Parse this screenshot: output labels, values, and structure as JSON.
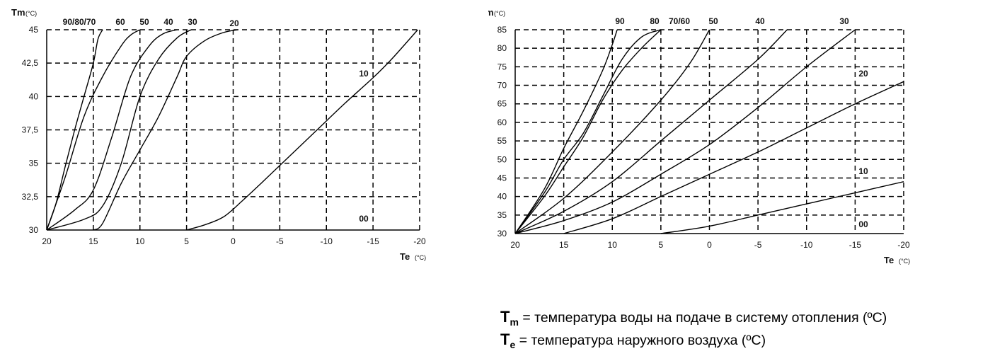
{
  "chart_data": [
    {
      "type": "line",
      "ylabel": "Tm",
      "ylabel_unit": "(°C)",
      "xlabel": "Te",
      "xlabel_unit": "(°C)",
      "x_reversed": true,
      "xlim": [
        20,
        -20
      ],
      "ylim": [
        30,
        45
      ],
      "x_ticks": [
        20,
        15,
        10,
        5,
        0,
        -5,
        -10,
        -15,
        -20
      ],
      "y_ticks": [
        30,
        32.5,
        35,
        37.5,
        40,
        42.5,
        45
      ],
      "y_tick_labels": [
        "30",
        "32,5",
        "35",
        "37,5",
        "40",
        "42,5",
        "45"
      ],
      "grid": "dashed",
      "series": [
        {
          "name": "90/80/70",
          "x": [
            20,
            19,
            18,
            17,
            16,
            15,
            14.5,
            14
          ],
          "y": [
            30,
            32,
            34.8,
            37.5,
            40,
            42.5,
            44.3,
            45
          ]
        },
        {
          "name": "60",
          "x": [
            20,
            18,
            16,
            14,
            12,
            11,
            10
          ],
          "y": [
            30,
            34,
            38.5,
            41.5,
            43.8,
            44.6,
            45
          ]
        },
        {
          "name": "50",
          "x": [
            20,
            17,
            15,
            13,
            11,
            9,
            7.5,
            6
          ],
          "y": [
            30,
            31.5,
            33,
            37,
            41.5,
            43.8,
            44.7,
            45
          ]
        },
        {
          "name": "40",
          "x": [
            20,
            16,
            14,
            12,
            10,
            8,
            6,
            4.5
          ],
          "y": [
            30,
            30.8,
            31.8,
            35,
            40,
            42.8,
            44.4,
            45
          ]
        },
        {
          "name": "30",
          "x": [
            15,
            14,
            12,
            10,
            8,
            6,
            5,
            3,
            1,
            -0.5
          ],
          "y": [
            30,
            30.5,
            33.5,
            36,
            38.5,
            41.5,
            43,
            44.2,
            44.8,
            45
          ]
        },
        {
          "name": "20",
          "x": [
            5,
            3,
            1,
            -1,
            -3,
            -6,
            -9,
            -12,
            -15,
            -17,
            -19.8
          ],
          "y": [
            30,
            30.4,
            31,
            32.2,
            33.5,
            35.5,
            37.5,
            39.5,
            41.4,
            42.8,
            45
          ]
        }
      ],
      "curve_labels": [
        "90/80/70",
        "60",
        "50",
        "40",
        "30",
        "20",
        "10",
        "00"
      ]
    },
    {
      "type": "line",
      "ylabel": "Tm",
      "ylabel_unit": "(°C)",
      "xlabel": "Te",
      "xlabel_unit": "(°C)",
      "x_reversed": true,
      "xlim": [
        20,
        -20
      ],
      "ylim": [
        30,
        85
      ],
      "x_ticks": [
        20,
        15,
        10,
        5,
        0,
        -5,
        -10,
        -15,
        -20
      ],
      "y_ticks": [
        30,
        35,
        40,
        45,
        50,
        55,
        60,
        65,
        70,
        75,
        80,
        85
      ],
      "y_tick_labels": [
        "30",
        "35",
        "40",
        "45",
        "50",
        "55",
        "60",
        "65",
        "70",
        "75",
        "80",
        "85"
      ],
      "grid": "dashed",
      "series": [
        {
          "name": "90",
          "x": [
            20,
            17,
            15,
            13,
            11,
            10,
            9.5
          ],
          "y": [
            30,
            42,
            53,
            63,
            74,
            81,
            85
          ]
        },
        {
          "name": "80",
          "x": [
            20,
            17,
            15,
            13,
            11,
            9,
            7,
            5
          ],
          "y": [
            30,
            41,
            50,
            57,
            67,
            77,
            83,
            85
          ]
        },
        {
          "name": "70/60",
          "x": [
            20,
            17,
            15,
            13,
            11,
            9,
            7,
            5
          ],
          "y": [
            30,
            40,
            48,
            56,
            66,
            74,
            80,
            85
          ]
        },
        {
          "name": "50",
          "x": [
            20,
            15,
            10,
            5,
            2,
            0
          ],
          "y": [
            30,
            39.5,
            52,
            66,
            76,
            85
          ]
        },
        {
          "name": "40",
          "x": [
            20,
            15,
            10,
            5,
            0,
            -5,
            -8
          ],
          "y": [
            30,
            36,
            44,
            55,
            66,
            77,
            85
          ]
        },
        {
          "name": "30",
          "x": [
            20,
            15,
            10,
            5,
            0,
            -5,
            -10,
            -15
          ],
          "y": [
            30,
            33.5,
            38.5,
            46,
            54,
            64,
            75,
            85
          ]
        },
        {
          "name": "20",
          "x": [
            15,
            10,
            5,
            0,
            -5,
            -10,
            -15,
            -20
          ],
          "y": [
            30,
            34,
            40,
            46,
            52,
            58.5,
            65,
            71
          ]
        },
        {
          "name": "10",
          "x": [
            5,
            0,
            -5,
            -10,
            -15,
            -20
          ],
          "y": [
            30,
            32,
            35,
            38,
            41,
            44
          ]
        }
      ],
      "curve_labels": [
        "90",
        "80",
        "70/60",
        "50",
        "40",
        "30",
        "20",
        "10",
        "00"
      ]
    }
  ],
  "legend": {
    "tm_symbol": "T",
    "tm_sub": "m",
    "tm_text": " = температура воды на подаче в систему отопления (ºC)",
    "te_symbol": "T",
    "te_sub": "e",
    "te_text": " = температура наружного воздуха (ºC)"
  }
}
